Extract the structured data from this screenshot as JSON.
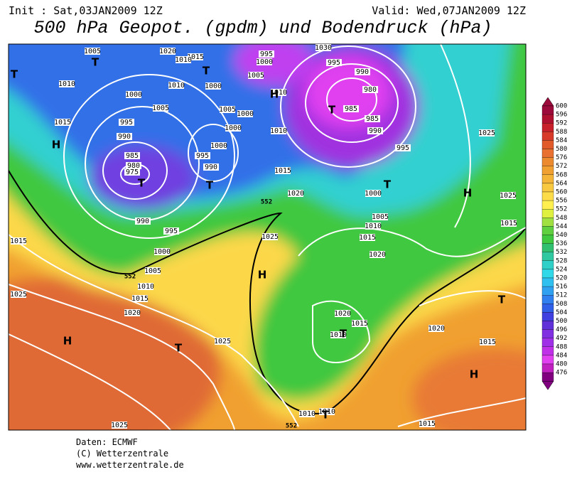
{
  "header": {
    "init": "Init : Sat,03JAN2009 12Z",
    "valid": "Valid: Wed,07JAN2009 12Z",
    "title": "500 hPa Geopot. (gpdm) und Bodendruck (hPa)"
  },
  "footer": {
    "source": "Daten: ECMWF",
    "copyright": "(C) Wetterzentrale",
    "url": "www.wetterzentrale.de"
  },
  "colorbar": {
    "labels": [
      600,
      596,
      592,
      588,
      584,
      580,
      576,
      572,
      568,
      564,
      560,
      556,
      552,
      548,
      544,
      540,
      536,
      532,
      528,
      524,
      520,
      516,
      512,
      508,
      504,
      500,
      496,
      492,
      488,
      484,
      480,
      476
    ],
    "colors": [
      "#9b0a3a",
      "#b01030",
      "#c8202a",
      "#d83a2a",
      "#e05a2a",
      "#e87030",
      "#ec8a30",
      "#f0a030",
      "#f4b438",
      "#f8c840",
      "#fcdc48",
      "#fff050",
      "#e0f040",
      "#a0e040",
      "#60d040",
      "#40c840",
      "#30c070",
      "#30c8a0",
      "#30d0c8",
      "#30d8e8",
      "#30c0f0",
      "#30a0f0",
      "#3080f0",
      "#3060e8",
      "#4040e0",
      "#6030d8",
      "#8030e0",
      "#a030e8",
      "#c030e8",
      "#e040f0",
      "#c020c0",
      "#800080"
    ]
  },
  "isobar_labels": [
    1005,
    1020,
    1015,
    1010,
    995,
    1000,
    1030,
    995,
    990,
    980,
    985,
    985,
    990,
    995,
    1010,
    1000,
    1005,
    1015,
    995,
    990,
    985,
    980,
    975,
    1005,
    1000,
    1000,
    1010,
    1000,
    995,
    990,
    1010,
    1005,
    1000,
    1010,
    1015,
    1020,
    1025,
    1025,
    1015,
    1000,
    1005,
    1010,
    1015,
    1020,
    990,
    995,
    1000,
    1005,
    1010,
    1015,
    1020,
    1025,
    1015,
    1025,
    1020,
    1015,
    1010,
    1025,
    1025,
    1010,
    1010,
    1015,
    1015,
    1020
  ],
  "pressure_centers": [
    "T",
    "T",
    "T",
    "H",
    "T",
    "T",
    "H",
    "T",
    "T",
    "H",
    "H",
    "H",
    "T",
    "T",
    "T",
    "H",
    "T"
  ],
  "contour_labels": [
    552,
    552,
    552
  ]
}
